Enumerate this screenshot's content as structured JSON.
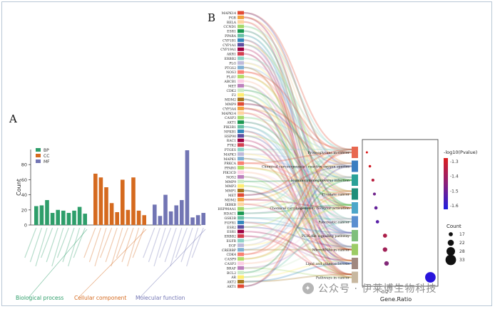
{
  "panel_a_label": "A",
  "panel_b_label": "B",
  "watermark": "公众号 · 伊莱博生物科技",
  "colors": {
    "BP": "#2e9e6a",
    "CC": "#d56a1f",
    "MF": "#7275b4"
  },
  "chart_data": [
    {
      "type": "bar",
      "panel": "A",
      "title": "",
      "xlabel": "",
      "ylabel": "Count",
      "ylim": [
        0,
        100
      ],
      "yticks": [
        0,
        20,
        40,
        60,
        80
      ],
      "legend": [
        "BP",
        "CC",
        "MF"
      ],
      "legend_position": "top-left",
      "groups": [
        {
          "name": "BP",
          "label": "Biological process",
          "values": [
            25,
            26,
            33,
            16,
            20,
            19,
            16,
            19,
            24,
            15
          ]
        },
        {
          "name": "CC",
          "label": "Cellular component",
          "values": [
            68,
            63,
            50,
            29,
            17,
            60,
            20,
            63,
            19,
            13
          ]
        },
        {
          "name": "MF",
          "label": "Molecular function",
          "values": [
            27,
            12,
            40,
            18,
            26,
            33,
            99,
            10,
            13,
            16
          ]
        }
      ]
    },
    {
      "type": "scatter",
      "panel": "B",
      "xlabel": "Gene.Ratio",
      "xticks": [
        "0.2"
      ],
      "pathways": [
        "Proteoglycans in cancer",
        "Chemical carcinogenesis - reactive oxygen species",
        "Human cytomegalovirus infection",
        "Prostate cancer",
        "Chemical carcinogenesis - receptor activation",
        "Pancreatic cancer",
        "PI3K-Akt signaling pathway",
        "MicroRNAs in cancer",
        "Lipid and atherosclerosis",
        "Pathways in cancer"
      ],
      "gene_ratio": [
        0.08,
        0.1,
        0.12,
        0.13,
        0.14,
        0.15,
        0.2,
        0.2,
        0.21,
        0.5
      ],
      "neg_log10_p": [
        -1.3,
        -1.32,
        -1.36,
        -1.48,
        -1.5,
        -1.52,
        -1.38,
        -1.4,
        -1.45,
        -1.6
      ],
      "count": [
        12,
        13,
        14,
        14,
        15,
        15,
        17,
        18,
        18,
        33
      ],
      "colorbar_title": "-log10(Pvalue)",
      "colorbar_ticks": [
        "-1.3",
        "-1.4",
        "-1.5",
        "-1.6"
      ],
      "size_legend_title": "Count",
      "size_legend": [
        17,
        22,
        28,
        33
      ]
    }
  ],
  "genes": [
    "MAPK14",
    "PGR",
    "RELA",
    "CCND1",
    "ESR1",
    "PPARA",
    "CYP1B1",
    "CYP1A1",
    "CYP19A1",
    "AKR1",
    "ERBB2",
    "PLG",
    "PTGS2",
    "NOS3",
    "PLAU",
    "ABCB1",
    "MET",
    "CDK2",
    "F2",
    "MDM2",
    "MMP9",
    "CYP3A4",
    "MAPK14",
    "CASP3",
    "AKT1",
    "PIK3R1",
    "NFKB1",
    "HSP90",
    "RAC1",
    "PTK2",
    "PTGES",
    "MAPK3",
    "MAPK1",
    "PRKCA",
    "PPARG",
    "PIK3CD",
    "NOS2",
    "MMP9",
    "MMP3",
    "MMP1",
    "MET",
    "MDM2",
    "IKBKB",
    "HSP90AA1",
    "HDAC1",
    "GSK3B",
    "FGFR1",
    "ESR2",
    "ESR1",
    "ERBB2",
    "EGFR",
    "EGF",
    "CREBBP",
    "CDK4",
    "CASP9",
    "CASP3",
    "BRAF",
    "BCL2",
    "AR",
    "AKT2",
    "AKT1"
  ]
}
